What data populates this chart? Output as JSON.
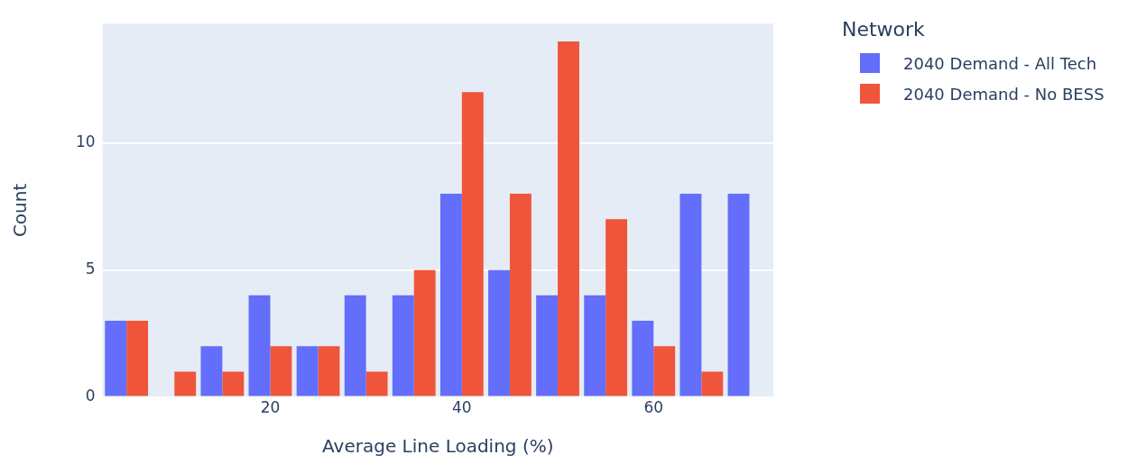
{
  "chart_data": {
    "type": "histogram",
    "xlabel": "Average Line Loading (%)",
    "ylabel": "Count",
    "legend_title": "Network",
    "legend": "top right",
    "grid": "y",
    "bins": [
      2.5,
      7.5,
      12.5,
      17.5,
      22.5,
      27.5,
      32.5,
      37.5,
      42.5,
      47.5,
      52.5,
      57.5,
      62.5,
      67.5,
      72.5
    ],
    "series": [
      {
        "name": "2040 Demand - All Tech",
        "color": "#636efa",
        "values": [
          3,
          0,
          2,
          4,
          2,
          4,
          4,
          8,
          5,
          4,
          4,
          3,
          8,
          8
        ]
      },
      {
        "name": "2040 Demand - No BESS",
        "color": "#ef553b",
        "values": [
          3,
          1,
          1,
          2,
          2,
          1,
          5,
          12,
          8,
          14,
          7,
          2,
          1,
          0
        ]
      }
    ],
    "xlim": [
      2.5,
      72.5
    ],
    "xticks": [
      20,
      40,
      60
    ],
    "ylim": [
      0,
      14.7
    ],
    "yticks": [
      0,
      5,
      10
    ]
  }
}
